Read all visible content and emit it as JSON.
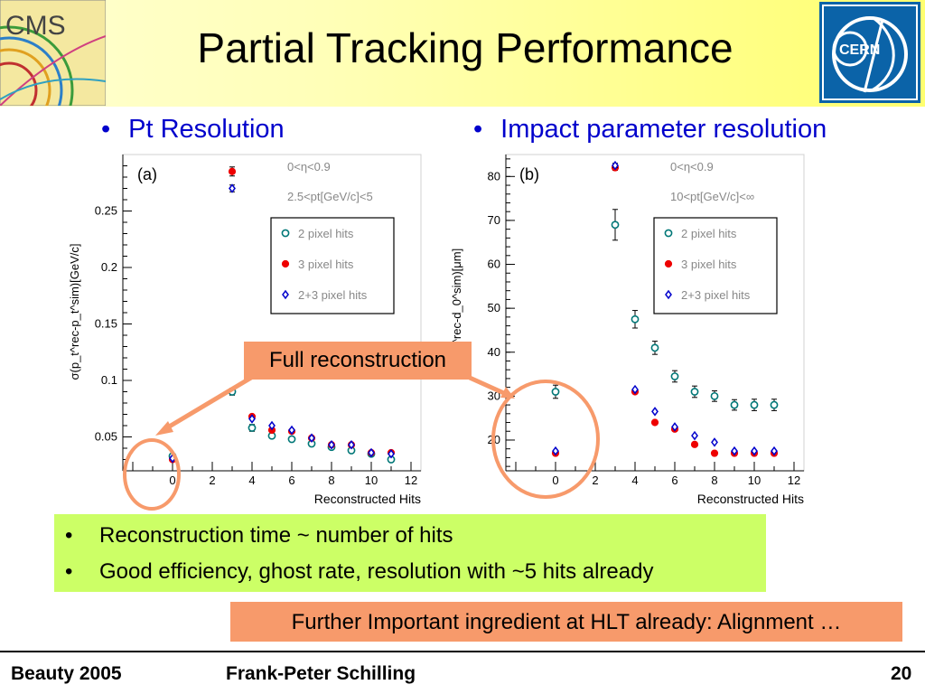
{
  "title": "Partial Tracking Performance",
  "bullets_top": {
    "left": "Pt Resolution",
    "right": "Impact parameter resolution",
    "marker": "•"
  },
  "logos": {
    "cms_text": "CMS",
    "cern_text": "CERN"
  },
  "callout": "Full reconstruction",
  "green_box": {
    "items": [
      "Reconstruction time ~ number of hits",
      "Good efficiency, ghost rate, resolution with ~5 hits already"
    ]
  },
  "orange_box": "Further Important ingredient at HLT already: Alignment …",
  "footer": {
    "left": "Beauty 2005",
    "center": "Frank-Peter Schilling",
    "right": "20"
  },
  "colors": {
    "series_2pix": "#007777",
    "series_3pix": "#ee0000",
    "series_23pix": "#0000cc",
    "highlight_circle": "#f79a6b",
    "callout_bg": "#f79a6b",
    "green_box_bg": "#ccff66"
  },
  "chart_data": [
    {
      "type": "scatter",
      "panel": "(a)",
      "xlabel": "Reconstructed Hits",
      "ylabel": "σ(p_t^rec-p_t^sim)[GeV/c]",
      "xlim": [
        -2.5,
        12.5
      ],
      "ylim": [
        0.02,
        0.3
      ],
      "xticks": [
        "0",
        "2",
        "4",
        "6",
        "8",
        "10",
        "12"
      ],
      "yticks": [
        "0.05",
        "0.1",
        "0.15",
        "0.2",
        "0.25"
      ],
      "cuts": [
        "0<η<0.9",
        "2.5<pt[GeV/c]<5"
      ],
      "legend": [
        "2 pixel hits",
        "3 pixel hits",
        "2+3 pixel hits"
      ],
      "legend_position": "right",
      "series": [
        {
          "name": "2 pixel hits",
          "marker": "open-circle",
          "x": [
            0,
            3,
            4,
            5,
            6,
            7,
            8,
            9,
            10,
            11
          ],
          "y": [
            0.033,
            0.09,
            0.058,
            0.051,
            0.048,
            0.044,
            0.041,
            0.038,
            0.035,
            0.03
          ],
          "err": [
            0.002,
            0.003,
            0.003,
            0.001,
            0.001,
            0.001,
            0.001,
            0.001,
            0.001,
            0.001
          ]
        },
        {
          "name": "3 pixel hits",
          "marker": "filled-circle",
          "x": [
            0,
            3,
            4,
            5,
            6,
            7,
            8,
            9,
            10,
            11
          ],
          "y": [
            0.03,
            0.285,
            0.068,
            0.056,
            0.055,
            0.049,
            0.043,
            0.043,
            0.036,
            0.036
          ],
          "err": [
            0.001,
            0.004,
            0.002,
            0.001,
            0.001,
            0.001,
            0.001,
            0.001,
            0.001,
            0.001
          ]
        },
        {
          "name": "2+3 pixel hits",
          "marker": "open-diamond",
          "x": [
            0,
            3,
            4,
            5,
            6,
            7,
            8,
            9,
            10,
            11
          ],
          "y": [
            0.031,
            0.27,
            0.066,
            0.06,
            0.056,
            0.049,
            0.043,
            0.043,
            0.036,
            0.035
          ],
          "err": [
            0.001,
            0.003,
            0.001,
            0.001,
            0.001,
            0.001,
            0.001,
            0.001,
            0.001,
            0.001
          ]
        }
      ]
    },
    {
      "type": "scatter",
      "panel": "(b)",
      "xlabel": "Reconstructed Hits",
      "ylabel": "σ(d_0^rec-d_0^sim)[μm]",
      "xlim": [
        -2.5,
        12.5
      ],
      "ylim": [
        13,
        85
      ],
      "xticks": [
        "0",
        "2",
        "4",
        "6",
        "8",
        "10",
        "12"
      ],
      "yticks": [
        "20",
        "30",
        "40",
        "50",
        "60",
        "70",
        "80"
      ],
      "cuts": [
        "0<η<0.9",
        "10<pt[GeV/c]<∞"
      ],
      "legend": [
        "2 pixel hits",
        "3 pixel hits",
        "2+3 pixel hits"
      ],
      "legend_position": "right",
      "series": [
        {
          "name": "2 pixel hits",
          "marker": "open-circle",
          "x": [
            0,
            3,
            4,
            5,
            6,
            7,
            8,
            9,
            10,
            11
          ],
          "y": [
            31,
            69,
            47.5,
            41,
            34.5,
            31,
            30,
            28,
            28,
            28
          ],
          "err": [
            1.5,
            3.5,
            2,
            1.5,
            1.3,
            1.3,
            1.2,
            1.2,
            1.3,
            1.3
          ]
        },
        {
          "name": "3 pixel hits",
          "marker": "filled-circle",
          "x": [
            0,
            3,
            4,
            5,
            6,
            7,
            8,
            9,
            10,
            11
          ],
          "y": [
            17,
            82,
            31,
            24,
            22.5,
            19,
            17,
            17,
            17,
            17
          ],
          "err": [
            0.4,
            0.6,
            0.4,
            0.3,
            0.3,
            0.3,
            0.3,
            0.3,
            0.3,
            0.3
          ]
        },
        {
          "name": "2+3 pixel hits",
          "marker": "open-diamond",
          "x": [
            0,
            3,
            4,
            5,
            6,
            7,
            8,
            9,
            10,
            11
          ],
          "y": [
            17.5,
            82.5,
            31.5,
            26.5,
            23,
            21,
            19.5,
            17.5,
            17.5,
            17.5
          ],
          "err": [
            0.3,
            0.5,
            0.4,
            0.3,
            0.3,
            0.3,
            0.3,
            0.3,
            0.3,
            0.3
          ]
        }
      ]
    }
  ]
}
